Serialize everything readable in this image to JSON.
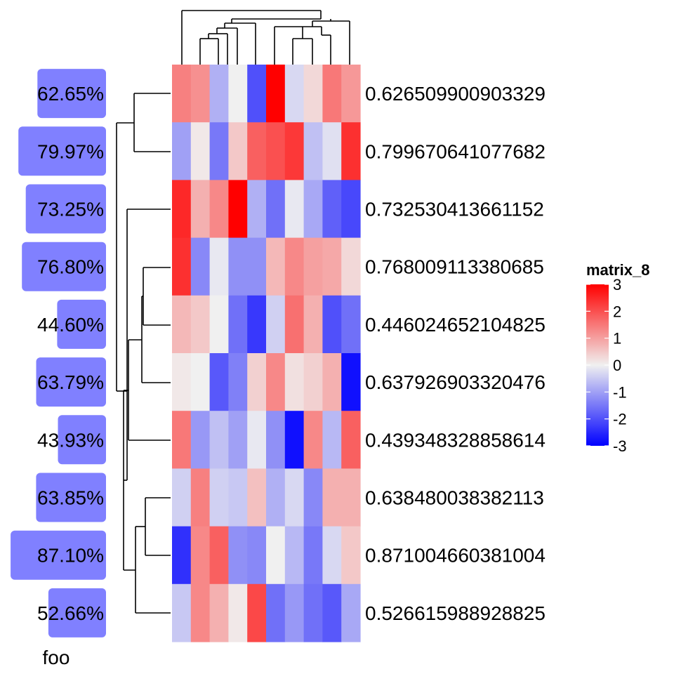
{
  "chart_data": {
    "type": "heatmap",
    "legend_title": "matrix_8",
    "legend_ticks": [
      3,
      2,
      1,
      0,
      -1,
      -2,
      -3
    ],
    "color_scale": {
      "low": "#0000FF",
      "mid": "#F0F0F0",
      "high": "#FF0000",
      "min": -3,
      "max": 3
    },
    "row_labels": [
      "0.626509900903329",
      "0.799670641077682",
      "0.732530413661152",
      "0.768009113380685",
      "0.446024652104825",
      "0.637926903320476",
      "0.439348328858614",
      "0.638480038382113",
      "0.871004660381004",
      "0.526615988928825"
    ],
    "row_annotation": {
      "name": "foo",
      "color": "#8080FF",
      "labels": [
        "62.65%",
        "79.97%",
        "73.25%",
        "76.80%",
        "44.60%",
        "63.79%",
        "43.93%",
        "63.85%",
        "87.10%",
        "52.66%"
      ],
      "values": [
        0.6265,
        0.7997,
        0.7325,
        0.768,
        0.446,
        0.6379,
        0.4393,
        0.6385,
        0.871,
        0.5266
      ]
    },
    "values": [
      [
        1.4,
        1.2,
        -0.8,
        0.0,
        -2.0,
        3.0,
        -0.3,
        0.3,
        1.5,
        1.1
      ],
      [
        -1.0,
        0.1,
        -1.5,
        0.5,
        1.8,
        2.0,
        2.3,
        -0.6,
        -0.2,
        2.4
      ],
      [
        2.5,
        0.8,
        1.3,
        3.0,
        -0.8,
        -1.6,
        -0.1,
        -0.9,
        -1.8,
        -2.1
      ],
      [
        2.4,
        -1.3,
        -0.1,
        -1.2,
        -1.2,
        0.7,
        1.3,
        1.0,
        0.9,
        0.3
      ],
      [
        0.7,
        0.5,
        0.0,
        -1.6,
        -2.3,
        -0.4,
        1.6,
        0.8,
        -2.0,
        -1.6
      ],
      [
        0.1,
        0.0,
        -1.9,
        -1.4,
        0.4,
        1.3,
        0.2,
        0.4,
        0.8,
        -2.8
      ],
      [
        1.5,
        -1.1,
        -0.6,
        -1.0,
        -0.1,
        -1.2,
        -2.8,
        1.3,
        -0.7,
        1.8
      ],
      [
        -0.4,
        1.4,
        -0.4,
        -0.5,
        0.6,
        -0.8,
        -0.3,
        -1.3,
        0.8,
        0.8
      ],
      [
        -2.4,
        1.3,
        1.8,
        -1.2,
        -1.3,
        0.0,
        -0.7,
        -1.5,
        -0.3,
        0.5
      ],
      [
        -0.5,
        1.3,
        0.8,
        0.1,
        2.1,
        -1.6,
        -1.1,
        -1.6,
        -1.9,
        -0.9
      ]
    ]
  }
}
